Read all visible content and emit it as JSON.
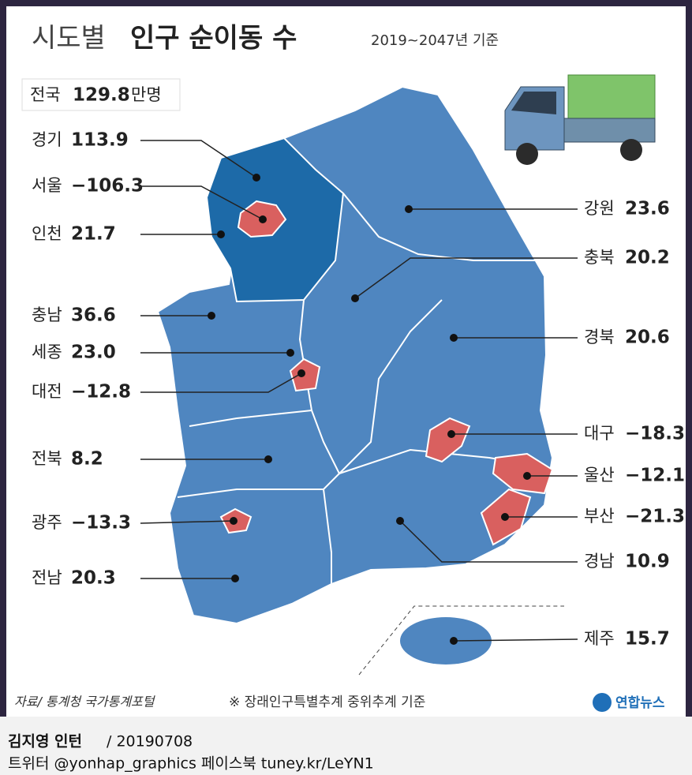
{
  "title_light": "시도별",
  "title_bold": "인구 순이동 수",
  "subtitle": "2019~2047년 기준",
  "total": {
    "label": "전국",
    "value": "129.8",
    "unit": "만명"
  },
  "regions": [
    {
      "name": "경기",
      "value": "113.9"
    },
    {
      "name": "서울",
      "value": "−106.3"
    },
    {
      "name": "인천",
      "value": "21.7"
    },
    {
      "name": "충남",
      "value": "36.6"
    },
    {
      "name": "세종",
      "value": "23.0"
    },
    {
      "name": "대전",
      "value": "−12.8"
    },
    {
      "name": "전북",
      "value": "8.2"
    },
    {
      "name": "광주",
      "value": "−13.3"
    },
    {
      "name": "전남",
      "value": "20.3"
    },
    {
      "name": "강원",
      "value": "23.6"
    },
    {
      "name": "충북",
      "value": "20.2"
    },
    {
      "name": "경북",
      "value": "20.6"
    },
    {
      "name": "대구",
      "value": "−18.3"
    },
    {
      "name": "울산",
      "value": "−12.1"
    },
    {
      "name": "부산",
      "value": "−21.3"
    },
    {
      "name": "경남",
      "value": "10.9"
    },
    {
      "name": "제주",
      "value": "15.7"
    }
  ],
  "source": "자료/ 통계청 국가통계포털",
  "note": "※ 장래인구특별추계 중위추계 기준",
  "logo": "연합뉴스",
  "credit": "김지영 인턴",
  "date": "/ 20190708",
  "social": "트위터 @yonhap_graphics  페이스북 tuney.kr/LeYN1"
}
